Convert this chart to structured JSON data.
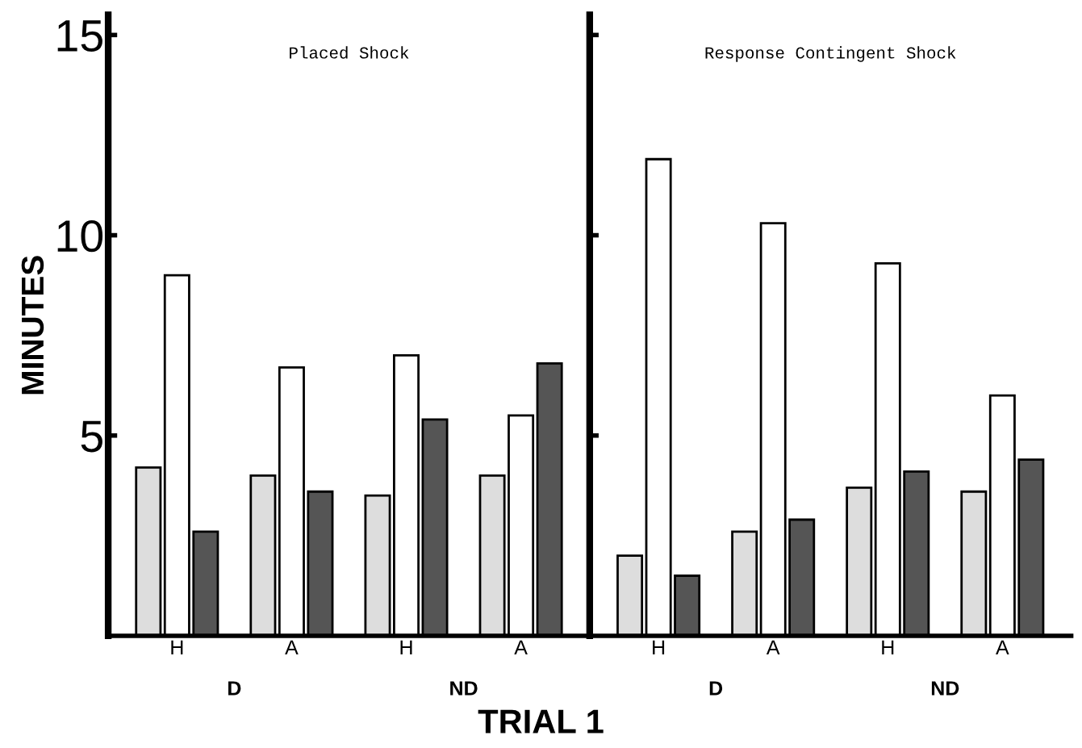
{
  "chart_data": [
    {
      "type": "bar",
      "title": "Placed Shock",
      "ylabel": "MINUTES",
      "xlabel": "TRIAL 1",
      "categories": [
        "H",
        "A",
        "H",
        "A"
      ],
      "series": [
        {
          "color": "#dddddd",
          "values": [
            4.2,
            4.0,
            3.5,
            4.0
          ]
        },
        {
          "color": "#ffffff",
          "values": [
            9.0,
            6.7,
            7.0,
            5.5
          ]
        },
        {
          "color": "#555555",
          "values": [
            2.6,
            3.6,
            5.4,
            6.8
          ]
        }
      ],
      "annotations": [
        "D",
        "ND"
      ],
      "ylim": [
        0,
        15.5
      ],
      "yticks": [
        5,
        10,
        15
      ],
      "grid": false
    },
    {
      "type": "bar",
      "title": "Response Contingent Shock",
      "categories": [
        "H",
        "A",
        "H",
        "A"
      ],
      "series": [
        {
          "color": "#dddddd",
          "values": [
            2.0,
            2.6,
            3.7,
            3.6
          ]
        },
        {
          "color": "#ffffff",
          "values": [
            11.9,
            10.3,
            9.3,
            6.0
          ]
        },
        {
          "color": "#555555",
          "values": [
            1.5,
            2.9,
            4.1,
            4.4
          ]
        }
      ],
      "annotations": [
        "D",
        "ND"
      ],
      "ylim": [
        0,
        15.5
      ],
      "yticks": [
        {
          "value": 5,
          "label": null
        },
        {
          "value": 10,
          "label": null
        },
        {
          "value": 15,
          "label": null
        }
      ],
      "tick_labels": "x",
      "grid": false
    }
  ]
}
